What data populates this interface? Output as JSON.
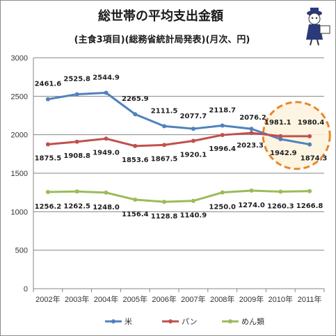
{
  "chart_data": {
    "type": "line",
    "title": "総世帯の平均支出金額",
    "subtitle": "(主食3項目)(総務省統計局発表)(月次、円)",
    "categories": [
      "2002年",
      "2003年",
      "2004年",
      "2005年",
      "2006年",
      "2007年",
      "2008年",
      "2009年",
      "2010年",
      "2011年"
    ],
    "ylim": [
      0,
      3000
    ],
    "yticks": [
      0,
      500,
      1000,
      1500,
      2000,
      2500,
      3000
    ],
    "grid": true,
    "legend_position": "bottom",
    "series": [
      {
        "name": "米",
        "color": "#4f81bd",
        "values": [
          2461.6,
          2525.8,
          2544.9,
          2265.9,
          2111.5,
          2077.7,
          2118.7,
          2076.2,
          1942.9,
          1874.3
        ],
        "labels": [
          "2461.6",
          "2525.8",
          "2544.9",
          "2265.9",
          "2111.5",
          "2077.7",
          "2118.7",
          "2076.2",
          "1942.9",
          "1874.3"
        ]
      },
      {
        "name": "パン",
        "color": "#c0504d",
        "values": [
          1875.5,
          1908.8,
          1949.0,
          1853.6,
          1867.5,
          1920.1,
          1996.4,
          2023.3,
          1981.1,
          1980.4
        ],
        "labels": [
          "1875.5",
          "1908.8",
          "1949.0",
          "1853.6",
          "1867.5",
          "1920.1",
          "1996.4",
          "2023.3",
          "1981.1",
          "1980.4"
        ]
      },
      {
        "name": "めん類",
        "color": "#9bbb59",
        "values": [
          1256.2,
          1262.5,
          1248.0,
          1156.4,
          1128.8,
          1140.9,
          1250.0,
          1274.0,
          1260.3,
          1266.8
        ],
        "labels": [
          "1256.2",
          "1262.5",
          "1248.0",
          "1156.4",
          "1128.8",
          "1140.9",
          "1250.0",
          "1274.0",
          "1260.3",
          "1266.8"
        ]
      }
    ],
    "annotation": {
      "type": "dashed-circle",
      "color": "#e8872a",
      "fill": "#fdf3dc"
    },
    "mascot_icon": "mascot-figure-icon"
  }
}
